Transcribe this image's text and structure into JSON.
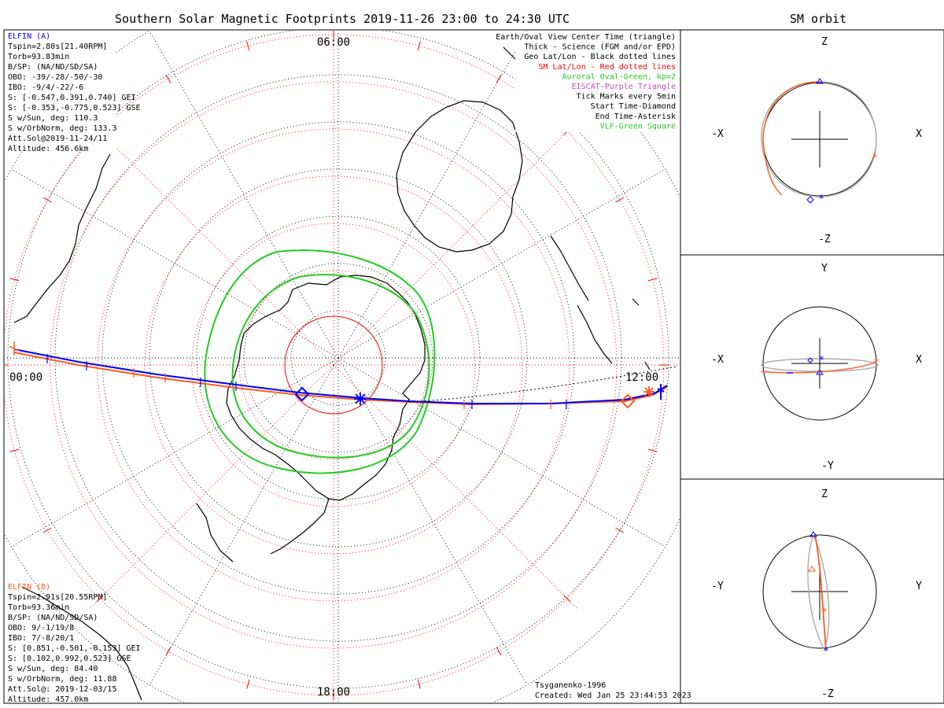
{
  "title": "Southern Solar Magnetic Footprints 2019-11-26 23:00 to 24:30 UTC",
  "right_title": "SM orbit",
  "colors": {
    "sc_a": "#0000ff",
    "sc_b": "#ff5a1f",
    "oval": "#22cc22",
    "sm_grid": "#ff0000",
    "geo_grid": "#000000",
    "eiscat": "#cc44cc"
  },
  "elfin_a": {
    "name": "ELFIN (A)",
    "lines": [
      "Tspin=2.80s[21.40RPM]",
      "Torb=93.83min",
      "B/SP: (NA/ND/SD/SA)",
      "OBO: -39/-28/-50/-30",
      "IBO: -9/4/-22/-6",
      "S: [-0.547,0.391,0.740] GEI",
      "S: [-0.353,-0.775,0.523] GSE",
      "S w/Sun, deg: 110.3",
      "S w/OrbNorm, deg: 133.3",
      "Att.Sol@2019-11-24/11",
      "Altitude: 456.6km"
    ]
  },
  "elfin_b": {
    "name": "ELFIN (B)",
    "lines": [
      "Tspin=2.91s[20.55RPM]",
      "Torb=93.36min",
      "B/SP: (NA/ND/SD/SA)",
      "OBO: 9/-1/19/8",
      "IBO: 7/-8/20/1",
      "S: [0.851,-0.501,-0.153] GEI",
      "S: [0.102,0.992,0.523] GSE",
      "S w/Sun, deg: 84.40",
      "S w/OrbNorm, deg: 11.88",
      "Att.Sol@: 2019-12-03/15",
      "Altitude: 457.0km"
    ]
  },
  "legend": [
    {
      "text": "Earth/Oval View Center Time (triangle)",
      "color": "#000000"
    },
    {
      "text": "Thick - Science (FGM and/or EPD)",
      "color": "#000000"
    },
    {
      "text": "Geo Lat/Lon - Black dotted lines",
      "color": "#000000"
    },
    {
      "text": "SM Lat/Lon - Red dotted lines",
      "color": "#ff0000"
    },
    {
      "text": "Auroral Oval-Green, kp=2",
      "color": "#22cc22"
    },
    {
      "text": "EISCAT-Purple Triangle",
      "color": "#cc44cc"
    },
    {
      "text": "Tick Marks every 5min",
      "color": "#000000"
    },
    {
      "text": "Start Time-Diamond",
      "color": "#000000"
    },
    {
      "text": "End Time-Asterisk",
      "color": "#000000"
    },
    {
      "text": "VLF-Green Square",
      "color": "#22cc22"
    }
  ],
  "time_labels": {
    "top": "06:00",
    "left": "00:00",
    "right": "12:00",
    "bottom": "18:00"
  },
  "credits": {
    "model": "Tsyganenko-1996",
    "created": "Created: Wed Jan 25 23:44:53 2023"
  },
  "panels": [
    {
      "h_left": "-X",
      "h_right": "X",
      "v_top": "Z",
      "v_bottom": "-Z"
    },
    {
      "h_left": "-X",
      "h_right": "X",
      "v_top": "Y",
      "v_bottom": "-Y"
    },
    {
      "h_left": "-Y",
      "h_right": "Y",
      "v_top": "Z",
      "v_bottom": "-Z"
    }
  ],
  "chart_data": [
    {
      "type": "polar-map",
      "view": "south SM magnetic footprints",
      "grid": true,
      "series": [
        {
          "name": "ELFIN (A)",
          "color": "#0000ff"
        },
        {
          "name": "ELFIN (B)",
          "color": "#ff5a1f"
        }
      ]
    },
    {
      "type": "orbit-projection",
      "axes": [
        "X",
        "Z"
      ]
    },
    {
      "type": "orbit-projection",
      "axes": [
        "X",
        "Y"
      ]
    },
    {
      "type": "orbit-projection",
      "axes": [
        "Y",
        "Z"
      ]
    }
  ]
}
